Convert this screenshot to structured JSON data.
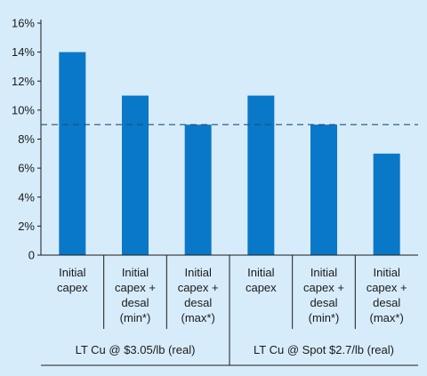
{
  "chart_data": {
    "type": "bar",
    "categories": [
      [
        "Initial",
        "capex"
      ],
      [
        "Initial",
        "capex +",
        "desal",
        "(min*)"
      ],
      [
        "Initial",
        "capex +",
        "desal",
        "(max*)"
      ],
      [
        "Initial",
        "capex"
      ],
      [
        "Initial",
        "capex +",
        "desal",
        "(min*)"
      ],
      [
        "Initial",
        "capex +",
        "desal",
        "(max*)"
      ]
    ],
    "values": [
      14,
      11,
      9,
      11,
      9,
      7
    ],
    "groups": [
      {
        "label": "LT Cu @ $3.05/lb (real)",
        "span": [
          0,
          2
        ]
      },
      {
        "label": "LT Cu @ Spot $2.7/lb (real)",
        "span": [
          3,
          5
        ]
      }
    ],
    "ylim": [
      0,
      16
    ],
    "yticks": [
      "0",
      "2%",
      "4%",
      "6%",
      "8%",
      "10%",
      "12%",
      "14%",
      "16%"
    ],
    "ytick_values": [
      0,
      2,
      4,
      6,
      8,
      10,
      12,
      14,
      16
    ],
    "reference_line": {
      "value": 9,
      "style": "dashed"
    },
    "title": "",
    "xlabel": "",
    "ylabel": "",
    "colors": {
      "bar": "#0a78c8",
      "background": "#d7ecfa",
      "axis": "#1a1a1a",
      "reference": "#1f4e79"
    }
  }
}
